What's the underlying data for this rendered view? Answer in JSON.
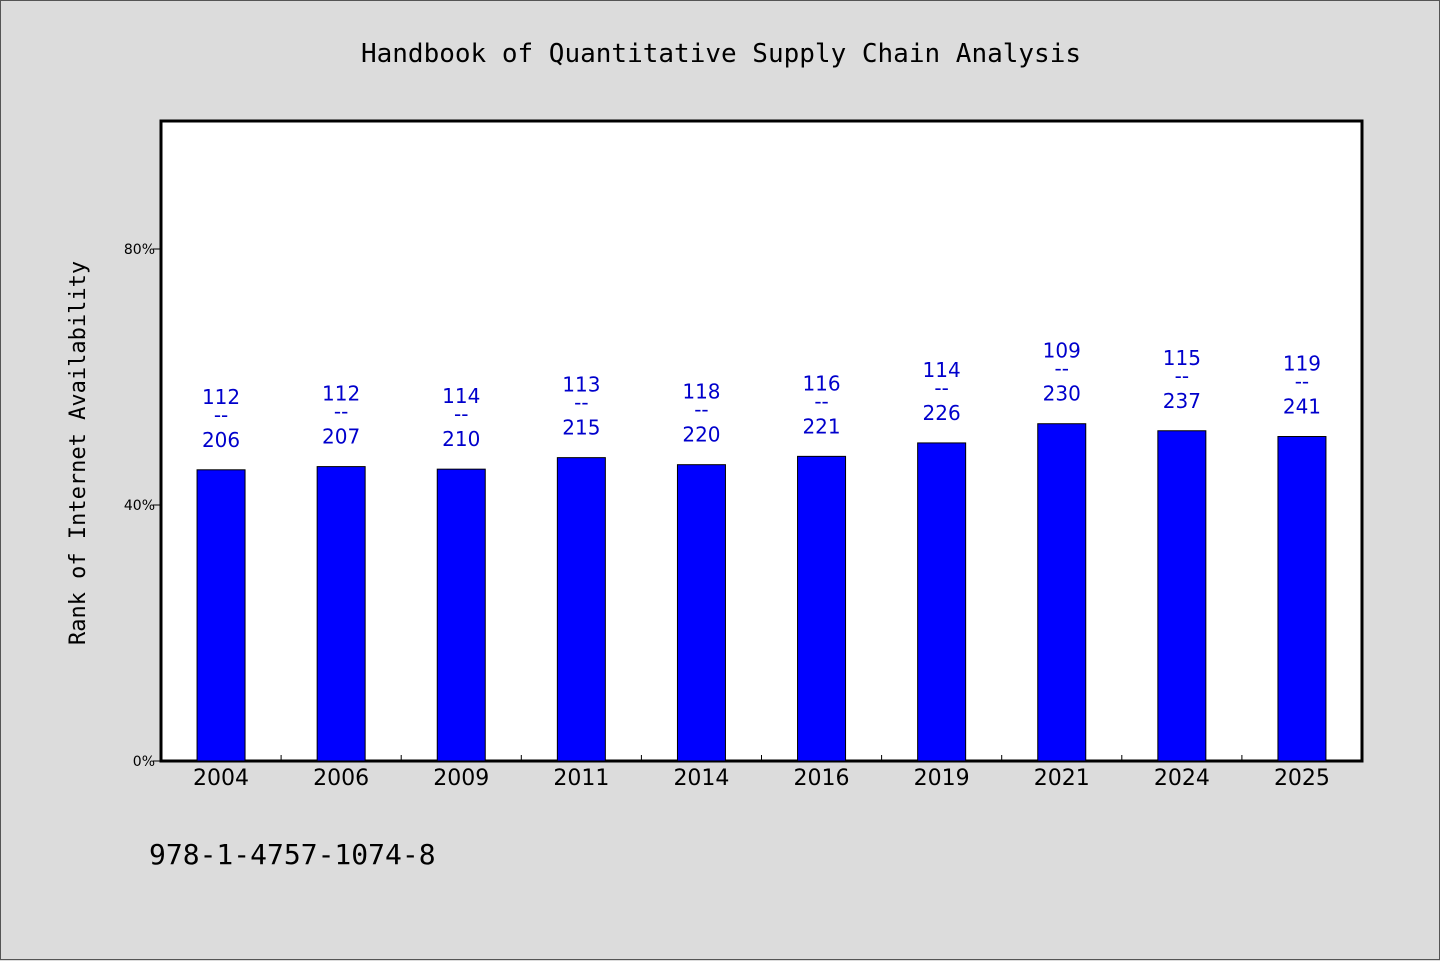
{
  "chart_data": {
    "type": "bar",
    "title": "Handbook of Quantitative Supply Chain Analysis",
    "ylabel": "Rank of Internet Availability",
    "xlabel": "",
    "ylim": [
      0,
      100
    ],
    "yticks": [
      {
        "value": 0,
        "label": "0%"
      },
      {
        "value": 40,
        "label": "40%"
      },
      {
        "value": 80,
        "label": "80%"
      }
    ],
    "categories": [
      "2004",
      "2006",
      "2009",
      "2011",
      "2014",
      "2016",
      "2019",
      "2021",
      "2024",
      "2025"
    ],
    "values": [
      45.5,
      46.0,
      45.6,
      47.4,
      46.3,
      47.6,
      49.7,
      52.7,
      51.6,
      50.7
    ],
    "bar_labels": [
      {
        "top": "112",
        "sep": "--",
        "bottom": "206"
      },
      {
        "top": "112",
        "sep": "--",
        "bottom": "207"
      },
      {
        "top": "114",
        "sep": "--",
        "bottom": "210"
      },
      {
        "top": "113",
        "sep": "--",
        "bottom": "215"
      },
      {
        "top": "118",
        "sep": "--",
        "bottom": "220"
      },
      {
        "top": "116",
        "sep": "--",
        "bottom": "221"
      },
      {
        "top": "114",
        "sep": "--",
        "bottom": "226"
      },
      {
        "top": "109",
        "sep": "--",
        "bottom": "230"
      },
      {
        "top": "115",
        "sep": "--",
        "bottom": "237"
      },
      {
        "top": "119",
        "sep": "--",
        "bottom": "241"
      }
    ],
    "bar_color": "#0000ff",
    "label_color": "#0000cc",
    "plot_background": "#ffffff",
    "page_background": "#dcdcdc",
    "grid": false,
    "legend": "none"
  },
  "footnote": "978-1-4757-1074-8"
}
